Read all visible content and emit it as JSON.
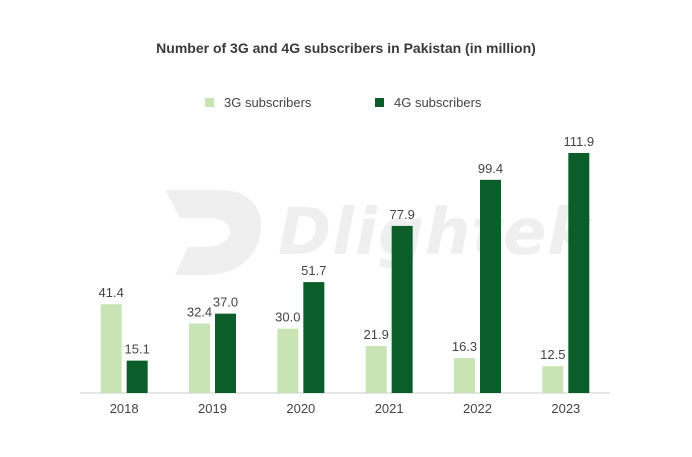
{
  "chart_data": {
    "type": "bar",
    "title": "Number of 3G and 4G subscribers in Pakistan (in million)",
    "categories": [
      "2018",
      "2019",
      "2020",
      "2021",
      "2022",
      "2023"
    ],
    "series": [
      {
        "name": "3G subscribers",
        "color": "#c9e4b4",
        "values": [
          41.4,
          32.4,
          30.0,
          21.9,
          16.3,
          12.5
        ]
      },
      {
        "name": "4G subscribers",
        "color": "#0b5e29",
        "values": [
          15.1,
          37.0,
          51.7,
          77.9,
          99.4,
          111.9
        ]
      }
    ],
    "value_labels": [
      [
        "41.4",
        "32.4",
        "30.0",
        "21.9",
        "16.3",
        "12.5"
      ],
      [
        "15.1",
        "37.0",
        "51.7",
        "77.9",
        "99.4",
        "111.9"
      ]
    ],
    "ylim": [
      0,
      111.9
    ],
    "grid": false,
    "legend_position": "top-center"
  },
  "watermark": {
    "text": "Dlightek"
  }
}
